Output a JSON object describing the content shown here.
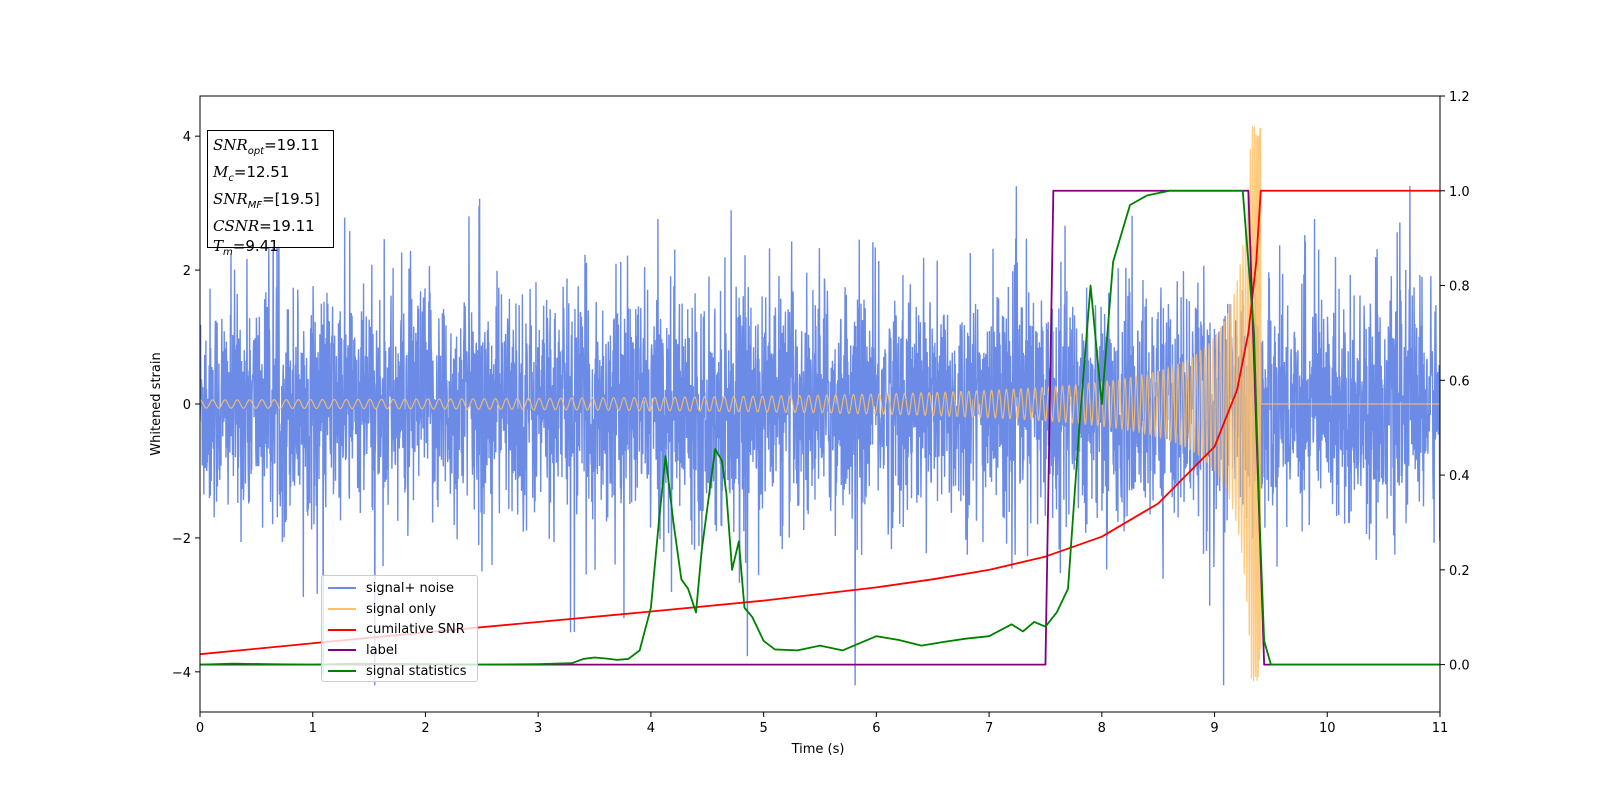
{
  "chart_data": {
    "type": "line",
    "xlabel": "Time (s)",
    "ylabel": "Whitened strain",
    "xlim": [
      0,
      11
    ],
    "ylim": [
      -4.6,
      4.6
    ],
    "y2lim": [
      -0.1,
      1.2
    ],
    "x_ticks": [
      "0",
      "1",
      "2",
      "3",
      "4",
      "5",
      "6",
      "7",
      "8",
      "9",
      "10",
      "11"
    ],
    "y_ticks": [
      "4",
      "2",
      "0",
      "−2",
      "−4"
    ],
    "y2_ticks": [
      "1.2",
      "1.0",
      "0.8",
      "0.6",
      "0.4",
      "0.2",
      "0.0"
    ],
    "info": {
      "snr_opt": "19.11",
      "mc": "12.51",
      "snr_mf": "[19.5]",
      "csnr": "19.11",
      "tm": "9.41"
    },
    "legend_position": "lower-left",
    "series": [
      {
        "name": "signal+ noise",
        "color": "#6b8be6",
        "axis": "left",
        "description_points": {
          "noise_std": 0.85,
          "end_time": 11
        }
      },
      {
        "name": "signal only",
        "color": "#ffc067",
        "axis": "left",
        "chirp": {
          "amplitude_start": 0.06,
          "merger_time": 9.41,
          "peak_amplitude": 4.15
        }
      },
      {
        "name": "cumilative SNR",
        "color": "#ff0000",
        "axis": "right",
        "points": [
          [
            0,
            0.022
          ],
          [
            1,
            0.045
          ],
          [
            2,
            0.068
          ],
          [
            3,
            0.09
          ],
          [
            4,
            0.112
          ],
          [
            5,
            0.135
          ],
          [
            6,
            0.163
          ],
          [
            6.5,
            0.18
          ],
          [
            7,
            0.2
          ],
          [
            7.5,
            0.228
          ],
          [
            8,
            0.27
          ],
          [
            8.5,
            0.34
          ],
          [
            9,
            0.46
          ],
          [
            9.2,
            0.58
          ],
          [
            9.3,
            0.7
          ],
          [
            9.37,
            0.85
          ],
          [
            9.41,
            1.0
          ],
          [
            11,
            1.0
          ]
        ]
      },
      {
        "name": "label",
        "color": "#800080",
        "axis": "right",
        "points": [
          [
            0,
            0
          ],
          [
            7.5,
            0
          ],
          [
            7.57,
            1.0
          ],
          [
            9.3,
            1.0
          ],
          [
            9.44,
            0
          ],
          [
            11,
            0
          ]
        ]
      },
      {
        "name": "signal statistics",
        "color": "#008000",
        "axis": "right",
        "points": [
          [
            0,
            0
          ],
          [
            0.3,
            0.002
          ],
          [
            0.6,
            0.001
          ],
          [
            1,
            0
          ],
          [
            1.4,
            0.002
          ],
          [
            2,
            0.001
          ],
          [
            2.5,
            0
          ],
          [
            3,
            0.001
          ],
          [
            3.3,
            0.003
          ],
          [
            3.4,
            0.012
          ],
          [
            3.5,
            0.015
          ],
          [
            3.6,
            0.013
          ],
          [
            3.7,
            0.01
          ],
          [
            3.8,
            0.012
          ],
          [
            3.9,
            0.03
          ],
          [
            4.0,
            0.12
          ],
          [
            4.07,
            0.3
          ],
          [
            4.13,
            0.44
          ],
          [
            4.2,
            0.3
          ],
          [
            4.27,
            0.18
          ],
          [
            4.33,
            0.16
          ],
          [
            4.4,
            0.11
          ],
          [
            4.45,
            0.24
          ],
          [
            4.5,
            0.33
          ],
          [
            4.57,
            0.455
          ],
          [
            4.63,
            0.43
          ],
          [
            4.67,
            0.36
          ],
          [
            4.72,
            0.2
          ],
          [
            4.78,
            0.26
          ],
          [
            4.83,
            0.12
          ],
          [
            4.9,
            0.1
          ],
          [
            5,
            0.05
          ],
          [
            5.1,
            0.032
          ],
          [
            5.3,
            0.03
          ],
          [
            5.5,
            0.04
          ],
          [
            5.7,
            0.03
          ],
          [
            5.8,
            0.04
          ],
          [
            6.0,
            0.06
          ],
          [
            6.2,
            0.052
          ],
          [
            6.4,
            0.04
          ],
          [
            6.6,
            0.048
          ],
          [
            6.8,
            0.055
          ],
          [
            7.0,
            0.06
          ],
          [
            7.2,
            0.085
          ],
          [
            7.3,
            0.07
          ],
          [
            7.4,
            0.09
          ],
          [
            7.5,
            0.08
          ],
          [
            7.6,
            0.11
          ],
          [
            7.7,
            0.16
          ],
          [
            7.8,
            0.5
          ],
          [
            7.9,
            0.8
          ],
          [
            8.0,
            0.55
          ],
          [
            8.1,
            0.85
          ],
          [
            8.25,
            0.97
          ],
          [
            8.4,
            0.99
          ],
          [
            8.6,
            1.0
          ],
          [
            9.0,
            1.0
          ],
          [
            9.25,
            1.0
          ],
          [
            9.35,
            0.7
          ],
          [
            9.4,
            0.3
          ],
          [
            9.44,
            0.05
          ],
          [
            9.5,
            0.0
          ],
          [
            11,
            0.0
          ]
        ]
      }
    ]
  }
}
